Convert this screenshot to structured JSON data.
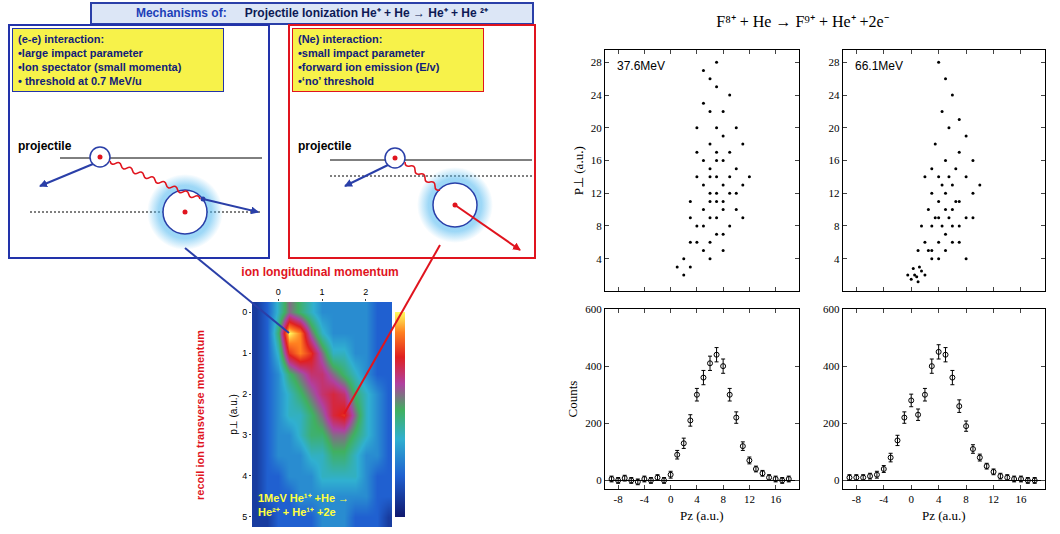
{
  "slide": {
    "header": {
      "label": "Mechanisms of:",
      "text": "Projectile Ionization  He⁺ + He → He⁺ +  He ²⁺"
    },
    "panels": [
      {
        "title": "(e-e) interaction:",
        "items": [
          "•large impact parameter",
          "•Ion spectator (small momenta)",
          "• threshold at 0.7 MeV/u"
        ],
        "diagram_label": "projectile"
      },
      {
        "title": "(Ne) interaction:",
        "items": [
          "•small impact parameter",
          "•forward ion emission (E/v)",
          "•‘no’ threshold"
        ],
        "diagram_label": "projectile"
      }
    ]
  },
  "figure": {
    "title": "F⁸⁺ + He → F⁹⁺ + He⁺ +2e⁻"
  },
  "chart_data": [
    {
      "type": "heatmap",
      "title": "ion longitudinal momentum",
      "ylabel": [
        "recoil ion transverse momentum",
        "p⊥ (a.u.)"
      ],
      "annotations": [
        "1MeV He¹⁺ +He →",
        "He²⁺ + He¹⁺ +2e"
      ],
      "x": [
        -0.5,
        -0.25,
        0,
        0.25,
        0.5,
        0.75,
        1,
        1.25,
        1.5,
        1.75,
        2,
        2.25,
        2.5
      ],
      "y": [
        0,
        0.5,
        1,
        1.5,
        2,
        2.5,
        3,
        3.5,
        4,
        4.5,
        5
      ],
      "z": [
        [
          1,
          2,
          4,
          6,
          5,
          4,
          3,
          3,
          3,
          3,
          3,
          2,
          2
        ],
        [
          1,
          2,
          5,
          10,
          9,
          6,
          4,
          3,
          3,
          3,
          3,
          2,
          2
        ],
        [
          1,
          2,
          4,
          8,
          9,
          8,
          6,
          4,
          4,
          3,
          3,
          2,
          2
        ],
        [
          1,
          2,
          3,
          5,
          6,
          7,
          7,
          6,
          5,
          4,
          3,
          2,
          2
        ],
        [
          1,
          2,
          3,
          4,
          5,
          6,
          7,
          7.5,
          7,
          5,
          4,
          3,
          2
        ],
        [
          1,
          2,
          3,
          4,
          4,
          5,
          6,
          7.5,
          8,
          6,
          4,
          3,
          2
        ],
        [
          1,
          2,
          3,
          3,
          4,
          5,
          5,
          6,
          6,
          5,
          4,
          3,
          2
        ],
        [
          1,
          2,
          3,
          3,
          3,
          4,
          4,
          5,
          5,
          4,
          3,
          3,
          2
        ],
        [
          1,
          2,
          2,
          3,
          3,
          3,
          4,
          4,
          4,
          4,
          3,
          2,
          2
        ],
        [
          1,
          2,
          2,
          2,
          3,
          3,
          3,
          3,
          3,
          3,
          3,
          2,
          2
        ],
        [
          1,
          1,
          2,
          2,
          2,
          2,
          3,
          3,
          3,
          2,
          2,
          2,
          1
        ]
      ],
      "zlim": [
        0,
        10
      ],
      "xlim": [
        -0.6,
        2.6
      ],
      "xticks": [
        0,
        1,
        2
      ],
      "ylim": [
        5.25,
        -0.25
      ],
      "yticks": [
        0,
        1,
        2,
        3,
        4,
        5
      ]
    },
    {
      "type": "scatter",
      "annotations": [
        "37.6MeV"
      ],
      "ylabel": "P⊥ (a.u.)",
      "tick_labels": "y",
      "color": "#000000",
      "marker": "dot",
      "xlim": [
        -10,
        19.5
      ],
      "xticks": [
        -8,
        -4,
        0,
        4,
        8,
        12,
        16
      ],
      "ylim": [
        0,
        29.5
      ],
      "yticks": [
        4,
        8,
        12,
        16,
        20,
        24,
        28
      ],
      "points": [
        [
          2,
          4
        ],
        [
          3,
          6
        ],
        [
          4,
          8
        ],
        [
          5,
          10
        ],
        [
          6,
          12
        ],
        [
          7,
          14
        ],
        [
          8,
          16
        ],
        [
          6,
          9
        ],
        [
          7,
          11
        ],
        [
          5,
          13
        ],
        [
          8,
          10
        ],
        [
          9,
          12
        ],
        [
          6,
          18
        ],
        [
          7,
          20
        ],
        [
          4,
          14
        ],
        [
          3,
          11
        ],
        [
          10,
          15
        ],
        [
          9,
          8
        ],
        [
          6,
          6
        ],
        [
          7,
          7
        ],
        [
          5,
          5
        ],
        [
          8,
          19
        ],
        [
          6,
          22
        ],
        [
          7,
          25
        ],
        [
          5,
          27
        ],
        [
          9,
          24
        ],
        [
          4,
          20
        ],
        [
          10,
          10
        ],
        [
          11,
          13
        ],
        [
          6,
          15
        ],
        [
          7,
          17
        ],
        [
          8,
          13
        ],
        [
          5,
          8
        ],
        [
          4,
          6
        ],
        [
          3,
          3
        ],
        [
          2,
          2
        ],
        [
          6,
          11
        ],
        [
          7,
          9
        ],
        [
          8,
          7
        ],
        [
          9,
          17
        ],
        [
          10,
          20
        ],
        [
          11,
          9
        ],
        [
          5,
          16
        ],
        [
          6,
          14
        ],
        [
          7,
          12
        ],
        [
          8,
          11
        ],
        [
          12,
          14
        ],
        [
          3,
          9
        ],
        [
          4,
          17
        ],
        [
          6,
          26
        ],
        [
          7,
          28
        ],
        [
          8,
          22
        ],
        [
          5,
          23
        ],
        [
          9,
          14
        ],
        [
          10,
          12
        ],
        [
          6,
          4
        ],
        [
          8,
          5
        ],
        [
          1,
          3
        ],
        [
          11,
          18
        ],
        [
          7,
          16
        ]
      ]
    },
    {
      "type": "scatter",
      "xlabel": "Pz (a.u.)",
      "ylabel": "Counts",
      "color": "#000000",
      "marker": "open_circle",
      "xlim": [
        -10,
        19.5
      ],
      "xticks": [
        -8,
        -4,
        0,
        4,
        8,
        12,
        16
      ],
      "ylim": [
        -30,
        600
      ],
      "yticks": [
        0,
        200,
        400,
        600
      ],
      "x": [
        -9,
        -8,
        -7,
        -6,
        -5,
        -4,
        -3,
        -2,
        -1,
        0,
        1,
        2,
        3,
        4,
        5,
        6,
        7,
        8,
        9,
        10,
        11,
        12,
        13,
        14,
        15,
        16,
        17,
        18
      ],
      "values": [
        5,
        0,
        8,
        0,
        -5,
        5,
        0,
        10,
        0,
        20,
        90,
        130,
        210,
        300,
        360,
        410,
        440,
        400,
        300,
        220,
        120,
        70,
        40,
        25,
        10,
        5,
        0,
        5
      ],
      "errors": [
        10,
        10,
        10,
        10,
        10,
        10,
        10,
        10,
        10,
        12,
        15,
        18,
        20,
        22,
        25,
        25,
        25,
        25,
        22,
        20,
        15,
        12,
        10,
        10,
        10,
        10,
        10,
        10
      ]
    },
    {
      "type": "scatter",
      "annotations": [
        "66.1MeV"
      ],
      "tick_labels": "y",
      "color": "#000000",
      "marker": "dot",
      "xlim": [
        -10,
        19.5
      ],
      "xticks": [
        -8,
        -4,
        0,
        4,
        8,
        12,
        16
      ],
      "ylim": [
        0,
        29.5
      ],
      "yticks": [
        4,
        8,
        12,
        16,
        20,
        24,
        28
      ],
      "points": [
        [
          0,
          1.5
        ],
        [
          0.5,
          2
        ],
        [
          1,
          1.2
        ],
        [
          1.5,
          2.5
        ],
        [
          0.8,
          1.8
        ],
        [
          -0.5,
          2
        ],
        [
          1.2,
          3
        ],
        [
          2,
          2
        ],
        [
          0.3,
          2.8
        ],
        [
          3,
          5
        ],
        [
          4,
          6
        ],
        [
          5,
          7
        ],
        [
          4.5,
          8
        ],
        [
          5.5,
          9
        ],
        [
          6,
          10
        ],
        [
          3.5,
          9
        ],
        [
          4,
          11
        ],
        [
          5,
          12
        ],
        [
          6,
          13
        ],
        [
          7,
          11
        ],
        [
          3,
          8
        ],
        [
          2,
          6
        ],
        [
          4,
          4
        ],
        [
          5,
          5
        ],
        [
          6,
          6
        ],
        [
          7,
          8
        ],
        [
          8,
          9
        ],
        [
          6.5,
          15
        ],
        [
          5,
          16
        ],
        [
          4,
          14
        ],
        [
          3,
          12
        ],
        [
          7,
          17
        ],
        [
          8,
          14
        ],
        [
          9,
          12
        ],
        [
          2.5,
          10
        ],
        [
          5.5,
          20
        ],
        [
          4.5,
          22
        ],
        [
          6,
          24
        ],
        [
          3.5,
          18
        ],
        [
          7,
          21
        ],
        [
          5,
          26
        ],
        [
          4,
          28
        ],
        [
          8,
          19
        ],
        [
          9,
          16
        ],
        [
          10,
          13
        ],
        [
          2,
          14
        ],
        [
          1.5,
          8
        ],
        [
          3,
          15
        ],
        [
          6,
          8
        ],
        [
          5,
          10
        ],
        [
          4,
          9
        ],
        [
          7,
          6
        ],
        [
          8,
          4
        ],
        [
          3,
          4
        ],
        [
          4.5,
          13
        ],
        [
          5.5,
          14
        ],
        [
          6.5,
          11
        ],
        [
          2.5,
          5
        ],
        [
          1,
          5
        ],
        [
          9,
          9
        ]
      ]
    },
    {
      "type": "scatter",
      "xlabel": "Pz (a.u.)",
      "color": "#000000",
      "marker": "open_circle",
      "xlim": [
        -10,
        19.5
      ],
      "xticks": [
        -8,
        -4,
        0,
        4,
        8,
        12,
        16
      ],
      "ylim": [
        -30,
        600
      ],
      "yticks": [
        0,
        200,
        400,
        600
      ],
      "x": [
        -9,
        -8,
        -7,
        -6,
        -5,
        -4,
        -3,
        -2,
        -1,
        0,
        1,
        2,
        3,
        4,
        5,
        6,
        7,
        8,
        9,
        10,
        11,
        12,
        13,
        14,
        15,
        16,
        17,
        18
      ],
      "values": [
        10,
        10,
        10,
        15,
        20,
        40,
        80,
        140,
        220,
        280,
        230,
        300,
        400,
        450,
        440,
        360,
        260,
        190,
        110,
        80,
        50,
        30,
        15,
        10,
        5,
        5,
        0,
        0
      ],
      "errors": [
        10,
        10,
        10,
        10,
        12,
        12,
        15,
        18,
        20,
        22,
        20,
        22,
        25,
        25,
        25,
        25,
        22,
        18,
        15,
        12,
        10,
        10,
        10,
        10,
        10,
        10,
        10,
        10
      ]
    }
  ]
}
